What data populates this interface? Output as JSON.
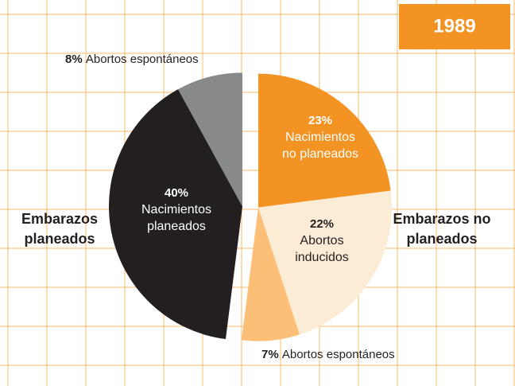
{
  "chart_data": {
    "type": "pie",
    "badge": "1989",
    "groups": [
      {
        "name": [
          "Embarazos no",
          "planeados"
        ],
        "values": [
          23,
          22,
          7
        ],
        "value_labels": [
          "23%",
          "22%",
          "7%"
        ],
        "labels": [
          [
            "Nacimientos",
            "no planeados"
          ],
          [
            "Abortos",
            "inducidos"
          ],
          [
            "Abortos espontáneos"
          ]
        ],
        "colors": [
          "#f39323",
          "#fdecd5",
          "#fcbf78"
        ]
      },
      {
        "name": [
          "Embarazos",
          "planeados"
        ],
        "values": [
          40,
          8
        ],
        "value_labels": [
          "40%",
          "8%"
        ],
        "labels": [
          [
            "Nacimientos",
            "planeados"
          ],
          [
            "Abortos espontáneos"
          ]
        ],
        "colors": [
          "#231f20",
          "#87898b"
        ]
      }
    ]
  }
}
